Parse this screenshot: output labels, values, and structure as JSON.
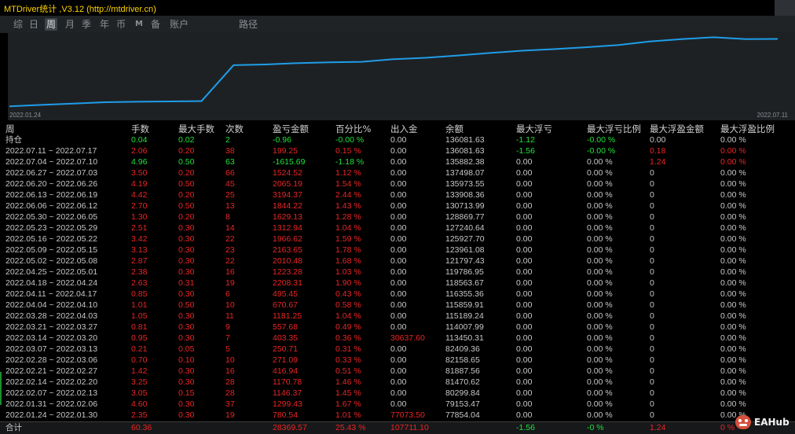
{
  "window": {
    "title": "MTDriver统计 ,V3.12 (http://mtdriver.cn)"
  },
  "colors": {
    "positive": "#ea2525",
    "negative": "#22e03a",
    "neutral": "#c8c8c8",
    "title": "#ffd400",
    "curve": "#1e9de8"
  },
  "toolbar": {
    "tabs": [
      {
        "label": "综",
        "active": false
      },
      {
        "label": "日",
        "active": false
      },
      {
        "label": "周",
        "active": true
      },
      {
        "label": "月",
        "active": false
      },
      {
        "label": "季",
        "active": false
      },
      {
        "label": "年",
        "active": false
      },
      {
        "label": "币",
        "active": false
      },
      {
        "label": "M",
        "active": false
      },
      {
        "label": "备",
        "active": false
      },
      {
        "label": "账户",
        "active": false
      },
      {
        "label": "路径",
        "active": false
      }
    ]
  },
  "balance_chart": {
    "start_date": "2022.01.24",
    "end_date": "2022.07.11",
    "x_range": [
      "2022.01.24",
      "2022.07.11"
    ],
    "points": [
      {
        "x": "2022.01.24",
        "y": 77854.04
      },
      {
        "x": "2022.01.31",
        "y": 79153.47
      },
      {
        "x": "2022.02.07",
        "y": 80299.84
      },
      {
        "x": "2022.02.14",
        "y": 81470.62
      },
      {
        "x": "2022.02.21",
        "y": 81887.56
      },
      {
        "x": "2022.02.28",
        "y": 82158.65
      },
      {
        "x": "2022.03.07",
        "y": 82409.36
      },
      {
        "x": "2022.03.14",
        "y": 113450.31
      },
      {
        "x": "2022.03.21",
        "y": 114007.99
      },
      {
        "x": "2022.03.28",
        "y": 115189.24
      },
      {
        "x": "2022.04.04",
        "y": 115859.91
      },
      {
        "x": "2022.04.11",
        "y": 116355.36
      },
      {
        "x": "2022.04.18",
        "y": 118563.67
      },
      {
        "x": "2022.04.25",
        "y": 119786.95
      },
      {
        "x": "2022.05.02",
        "y": 121797.43
      },
      {
        "x": "2022.05.09",
        "y": 123961.08
      },
      {
        "x": "2022.05.16",
        "y": 125927.7
      },
      {
        "x": "2022.05.23",
        "y": 127240.64
      },
      {
        "x": "2022.05.30",
        "y": 128869.77
      },
      {
        "x": "2022.06.06",
        "y": 130713.99
      },
      {
        "x": "2022.06.13",
        "y": 133908.36
      },
      {
        "x": "2022.06.20",
        "y": 135973.55
      },
      {
        "x": "2022.06.27",
        "y": 137498.07
      },
      {
        "x": "2022.07.04",
        "y": 135882.38
      },
      {
        "x": "2022.07.11",
        "y": 136081.63
      }
    ]
  },
  "table": {
    "headers": [
      "周",
      "手数",
      "最大手数",
      "次数",
      "盈亏金额",
      "百分比%",
      "出入金",
      "余额",
      "最大浮亏",
      "最大浮亏比例",
      "最大浮盈金额",
      "最大浮盈比例"
    ],
    "rows": [
      [
        "持仓",
        "0.04",
        "0.02",
        "2",
        "-0.96",
        "-0.00 %",
        "0.00",
        "136081.63",
        "-1.12",
        "-0.00 %",
        "0.00",
        "0.00 %"
      ],
      [
        "2022.07.11 ~ 2022.07.17",
        "2.06",
        "0.20",
        "38",
        "199.25",
        "0.15 %",
        "0.00",
        "136081.63",
        "-1.56",
        "-0.00 %",
        "0.18",
        "0.00 %"
      ],
      [
        "2022.07.04 ~ 2022.07.10",
        "4.96",
        "0.50",
        "63",
        "-1615.69",
        "-1.18 %",
        "0.00",
        "135882.38",
        "0.00",
        "0.00 %",
        "1.24",
        "0.00 %"
      ],
      [
        "2022.06.27 ~ 2022.07.03",
        "3.50",
        "0.20",
        "66",
        "1524.52",
        "1.12 %",
        "0.00",
        "137498.07",
        "0.00",
        "0.00 %",
        "0",
        "0.00 %"
      ],
      [
        "2022.06.20 ~ 2022.06.26",
        "4.19",
        "0.50",
        "45",
        "2065.19",
        "1.54 %",
        "0.00",
        "135973.55",
        "0.00",
        "0.00 %",
        "0",
        "0.00 %"
      ],
      [
        "2022.06.13 ~ 2022.06.19",
        "4.42",
        "0.20",
        "25",
        "3194.37",
        "2.44 %",
        "0.00",
        "133908.36",
        "0.00",
        "0.00 %",
        "0",
        "0.00 %"
      ],
      [
        "2022.06.06 ~ 2022.06.12",
        "2.70",
        "0.50",
        "13",
        "1844.22",
        "1.43 %",
        "0.00",
        "130713.99",
        "0.00",
        "0.00 %",
        "0",
        "0.00 %"
      ],
      [
        "2022.05.30 ~ 2022.06.05",
        "1.30",
        "0.20",
        "8",
        "1629.13",
        "1.28 %",
        "0.00",
        "128869.77",
        "0.00",
        "0.00 %",
        "0",
        "0.00 %"
      ],
      [
        "2022.05.23 ~ 2022.05.29",
        "2.51",
        "0.30",
        "14",
        "1312.94",
        "1.04 %",
        "0.00",
        "127240.64",
        "0.00",
        "0.00 %",
        "0",
        "0.00 %"
      ],
      [
        "2022.05.16 ~ 2022.05.22",
        "3.42",
        "0.30",
        "22",
        "1966.62",
        "1.59 %",
        "0.00",
        "125927.70",
        "0.00",
        "0.00 %",
        "0",
        "0.00 %"
      ],
      [
        "2022.05.09 ~ 2022.05.15",
        "3.13",
        "0.30",
        "23",
        "2163.65",
        "1.78 %",
        "0.00",
        "123961.08",
        "0.00",
        "0.00 %",
        "0",
        "0.00 %"
      ],
      [
        "2022.05.02 ~ 2022.05.08",
        "2.87",
        "0.30",
        "22",
        "2010.48",
        "1.68 %",
        "0.00",
        "121797.43",
        "0.00",
        "0.00 %",
        "0",
        "0.00 %"
      ],
      [
        "2022.04.25 ~ 2022.05.01",
        "2.38",
        "0.30",
        "16",
        "1223.28",
        "1.03 %",
        "0.00",
        "119786.95",
        "0.00",
        "0.00 %",
        "0",
        "0.00 %"
      ],
      [
        "2022.04.18 ~ 2022.04.24",
        "2.63",
        "0.31",
        "19",
        "2208.31",
        "1.90 %",
        "0.00",
        "118563.67",
        "0.00",
        "0.00 %",
        "0",
        "0.00 %"
      ],
      [
        "2022.04.11 ~ 2022.04.17",
        "0.85",
        "0.30",
        "6",
        "495.45",
        "0.43 %",
        "0.00",
        "116355.36",
        "0.00",
        "0.00 %",
        "0",
        "0.00 %"
      ],
      [
        "2022.04.04 ~ 2022.04.10",
        "1.01",
        "0.50",
        "10",
        "670.67",
        "0.58 %",
        "0.00",
        "115859.91",
        "0.00",
        "0.00 %",
        "0",
        "0.00 %"
      ],
      [
        "2022.03.28 ~ 2022.04.03",
        "1.05",
        "0.30",
        "11",
        "1181.25",
        "1.04 %",
        "0.00",
        "115189.24",
        "0.00",
        "0.00 %",
        "0",
        "0.00 %"
      ],
      [
        "2022.03.21 ~ 2022.03.27",
        "0.81",
        "0.30",
        "9",
        "557.68",
        "0.49 %",
        "0.00",
        "114007.99",
        "0.00",
        "0.00 %",
        "0",
        "0.00 %"
      ],
      [
        "2022.03.14 ~ 2022.03.20",
        "0.95",
        "0.30",
        "7",
        "403.35",
        "0.36 %",
        "30637.60",
        "113450.31",
        "0.00",
        "0.00 %",
        "0",
        "0.00 %"
      ],
      [
        "2022.03.07 ~ 2022.03.13",
        "0.21",
        "0.05",
        "5",
        "250.71",
        "0.31 %",
        "0.00",
        "82409.36",
        "0.00",
        "0.00 %",
        "0",
        "0.00 %"
      ],
      [
        "2022.02.28 ~ 2022.03.06",
        "0.70",
        "0.10",
        "10",
        "271.09",
        "0.33 %",
        "0.00",
        "82158.65",
        "0.00",
        "0.00 %",
        "0",
        "0.00 %"
      ],
      [
        "2022.02.21 ~ 2022.02.27",
        "1.42",
        "0.30",
        "16",
        "416.94",
        "0.51 %",
        "0.00",
        "81887.56",
        "0.00",
        "0.00 %",
        "0",
        "0.00 %"
      ],
      [
        "2022.02.14 ~ 2022.02.20",
        "3.25",
        "0.30",
        "28",
        "1170.78",
        "1.46 %",
        "0.00",
        "81470.62",
        "0.00",
        "0.00 %",
        "0",
        "0.00 %"
      ],
      [
        "2022.02.07 ~ 2022.02.13",
        "3.05",
        "0.15",
        "28",
        "1146.37",
        "1.45 %",
        "0.00",
        "80299.84",
        "0.00",
        "0.00 %",
        "0",
        "0.00 %"
      ],
      [
        "2022.01.31 ~ 2022.02.06",
        "4.60",
        "0.30",
        "37",
        "1299.43",
        "1.67 %",
        "0.00",
        "79153.47",
        "0.00",
        "0.00 %",
        "0",
        "0.00 %"
      ],
      [
        "2022.01.24 ~ 2022.01.30",
        "2.35",
        "0.30",
        "19",
        "780.54",
        "1.01 %",
        "77073.50",
        "77854.04",
        "0.00",
        "0.00 %",
        "0",
        "0.00 %"
      ]
    ],
    "total": [
      "合计",
      "60.36",
      "",
      "",
      "28369.57",
      "25.43 %",
      "107711.10",
      "",
      "-1.56",
      "-0 %",
      "1.24",
      "0 %"
    ]
  },
  "watermark": {
    "text": "EAHub"
  }
}
